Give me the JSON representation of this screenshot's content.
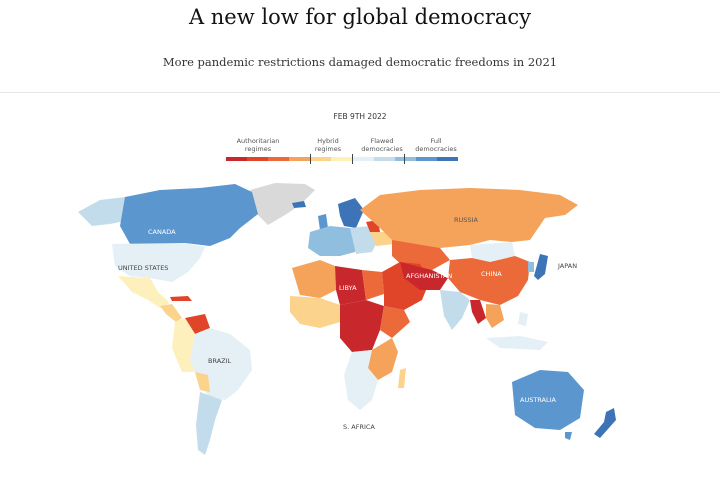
{
  "header": {
    "title": "A new low for global democracy",
    "subtitle": "More pandemic restrictions damaged democratic freedoms in 2021"
  },
  "date": "FEB 9TH 2022",
  "legend": {
    "categories": [
      {
        "label": "Authoritarian\nregimes",
        "colors": [
          "#c8282c",
          "#e0452a",
          "#ec6a3a"
        ]
      },
      {
        "label": "Hybrid\nregimes",
        "colors": [
          "#f5a25a",
          "#fbd38c",
          "#fdf0bc"
        ]
      },
      {
        "label": "Flawed\ndemocracies",
        "colors": [
          "#e4eff6",
          "#c2dcec",
          "#8fbedf"
        ]
      },
      {
        "label": "Full\ndemocracies",
        "colors": [
          "#5b96cf",
          "#3d74b8"
        ]
      }
    ]
  },
  "map": {
    "no_data_color": "#d9d9d9",
    "labels": [
      {
        "text": "RUSSIA",
        "color": "#555555"
      },
      {
        "text": "CANADA",
        "color": "#ffffff"
      },
      {
        "text": "UNITED STATES",
        "color": "#444444"
      },
      {
        "text": "LIBYA",
        "color": "#ffffff"
      },
      {
        "text": "AFGHANISTAN",
        "color": "#ffffff"
      },
      {
        "text": "CHINA",
        "color": "#ffffff"
      },
      {
        "text": "JAPAN",
        "color": "#444444"
      },
      {
        "text": "BRAZIL",
        "color": "#444444"
      },
      {
        "text": "AUSTRALIA",
        "color": "#ffffff"
      },
      {
        "text": "S. AFRICA",
        "color": "#444444"
      }
    ]
  }
}
